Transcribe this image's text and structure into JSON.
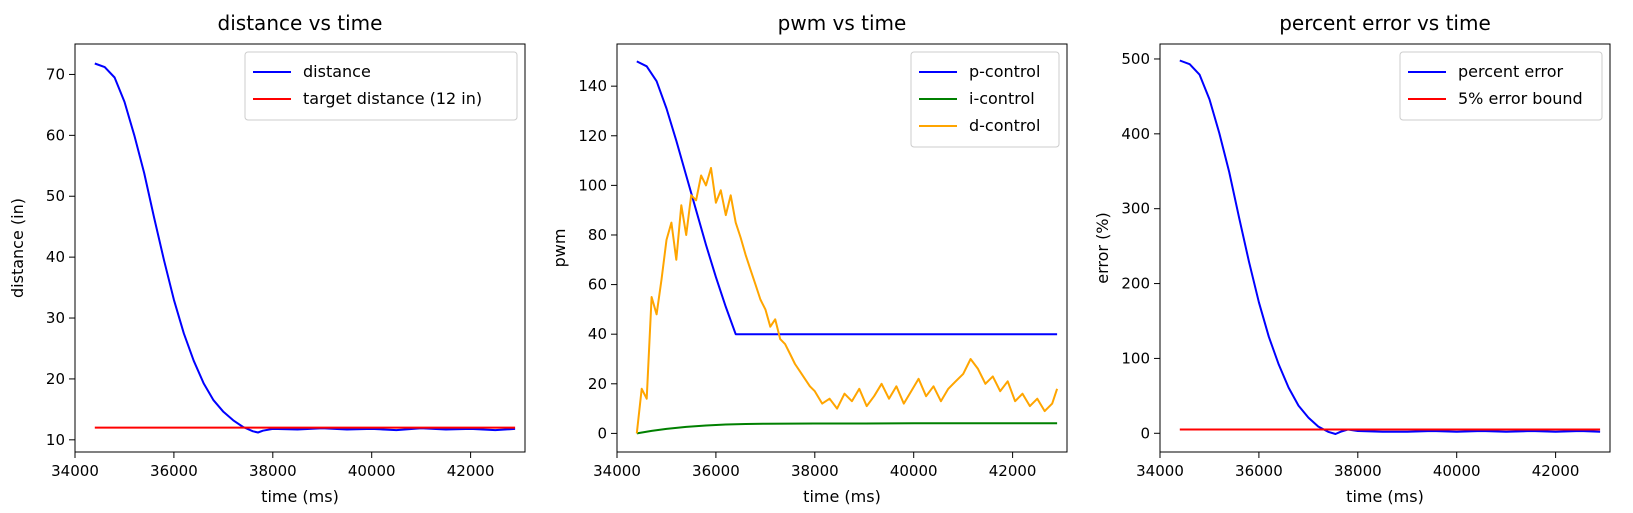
{
  "chart_data": [
    {
      "type": "line",
      "title": "distance vs time",
      "xlabel": "time (ms)",
      "ylabel": "distance (in)",
      "xlim": [
        34000,
        43100
      ],
      "ylim": [
        8,
        75
      ],
      "xticks": [
        34000,
        36000,
        38000,
        40000,
        42000
      ],
      "yticks": [
        10,
        20,
        30,
        40,
        50,
        60,
        70
      ],
      "grid": false,
      "legend_position": "top-right",
      "series": [
        {
          "name": "distance",
          "color": "#0000ff",
          "x": [
            34400,
            34600,
            34800,
            35000,
            35200,
            35400,
            35600,
            35800,
            36000,
            36200,
            36400,
            36600,
            36800,
            37000,
            37200,
            37400,
            37600,
            37700,
            37800,
            38000,
            38500,
            39000,
            39500,
            40000,
            40500,
            41000,
            41500,
            42000,
            42500,
            42900
          ],
          "y": [
            71.8,
            71.2,
            69.5,
            65.5,
            60,
            53.8,
            46.5,
            39.5,
            33,
            27.5,
            23,
            19.3,
            16.5,
            14.6,
            13.2,
            12.1,
            11.4,
            11.2,
            11.5,
            11.8,
            11.7,
            11.9,
            11.7,
            11.8,
            11.6,
            11.9,
            11.7,
            11.8,
            11.6,
            11.8
          ]
        },
        {
          "name": "target distance (12 in)",
          "color": "#ff0000",
          "x": [
            34400,
            42900
          ],
          "y": [
            12,
            12
          ]
        }
      ]
    },
    {
      "type": "line",
      "title": "pwm vs time",
      "xlabel": "time (ms)",
      "ylabel": "pwm",
      "xlim": [
        34000,
        43100
      ],
      "ylim": [
        -7.5,
        157
      ],
      "xticks": [
        34000,
        36000,
        38000,
        40000,
        42000
      ],
      "yticks": [
        0,
        20,
        40,
        60,
        80,
        100,
        120,
        140
      ],
      "grid": false,
      "legend_position": "top-right",
      "series": [
        {
          "name": "p-control",
          "color": "#0000ff",
          "x": [
            34400,
            34600,
            34800,
            35000,
            35200,
            35400,
            35600,
            35800,
            36000,
            36200,
            36400,
            36600,
            38000,
            40000,
            42000,
            42900
          ],
          "y": [
            150,
            148,
            142,
            131,
            118,
            104,
            90,
            76,
            63,
            51,
            40,
            40,
            40,
            40,
            40,
            40
          ]
        },
        {
          "name": "i-control",
          "color": "#008000",
          "x": [
            34400,
            34700,
            35000,
            35400,
            35800,
            36200,
            36600,
            37000,
            38000,
            39000,
            40000,
            41000,
            42000,
            42900
          ],
          "y": [
            0,
            1,
            1.8,
            2.6,
            3.2,
            3.6,
            3.8,
            3.9,
            4,
            4,
            4.1,
            4.1,
            4.1,
            4.1
          ],
          "seed": 0
        },
        {
          "name": "d-control",
          "color": "#ffa500",
          "x": [
            34400,
            34500,
            34600,
            34700,
            34800,
            34900,
            35000,
            35100,
            35200,
            35300,
            35400,
            35500,
            35600,
            35700,
            35800,
            35900,
            36000,
            36100,
            36200,
            36300,
            36400,
            36500,
            36600,
            36700,
            36800,
            36900,
            37000,
            37100,
            37200,
            37300,
            37400,
            37500,
            37600,
            37700,
            37800,
            37900,
            38000,
            38150,
            38300,
            38450,
            38600,
            38750,
            38900,
            39050,
            39200,
            39350,
            39500,
            39650,
            39800,
            39950,
            40100,
            40250,
            40400,
            40550,
            40700,
            40850,
            41000,
            41150,
            41300,
            41450,
            41600,
            41750,
            41900,
            42050,
            42200,
            42350,
            42500,
            42650,
            42800,
            42900
          ],
          "y": [
            0,
            18,
            14,
            55,
            48,
            62,
            78,
            85,
            70,
            92,
            80,
            96,
            94,
            104,
            100,
            107,
            93,
            98,
            88,
            96,
            85,
            79,
            72,
            66,
            60,
            54,
            50,
            43,
            46,
            38,
            36,
            32,
            28,
            25,
            22,
            19,
            17,
            12,
            14,
            10,
            16,
            13,
            18,
            11,
            15,
            20,
            14,
            19,
            12,
            17,
            22,
            15,
            19,
            13,
            18,
            21,
            24,
            30,
            26,
            20,
            23,
            17,
            21,
            13,
            16,
            11,
            14,
            9,
            12,
            18
          ]
        }
      ]
    },
    {
      "type": "line",
      "title": "percent error vs time",
      "xlabel": "time (ms)",
      "ylabel": "error (%)",
      "xlim": [
        34000,
        43100
      ],
      "ylim": [
        -25,
        520
      ],
      "xticks": [
        34000,
        36000,
        38000,
        40000,
        42000
      ],
      "yticks": [
        0,
        100,
        200,
        300,
        400,
        500
      ],
      "grid": false,
      "legend_position": "top-right",
      "series": [
        {
          "name": "percent error",
          "color": "#0000ff",
          "x": [
            34400,
            34600,
            34800,
            35000,
            35200,
            35400,
            35600,
            35800,
            36000,
            36200,
            36400,
            36600,
            36800,
            37000,
            37200,
            37400,
            37550,
            37650,
            37800,
            38000,
            38500,
            39000,
            39500,
            40000,
            40500,
            41000,
            41500,
            42000,
            42500,
            42900
          ],
          "y": [
            498,
            493,
            479,
            446,
            401,
            349,
            288,
            229,
            175,
            129,
            92,
            61,
            37,
            21,
            9,
            2,
            -1,
            2,
            5,
            3,
            2,
            2,
            3,
            2,
            3,
            2,
            3,
            2,
            3,
            2
          ]
        },
        {
          "name": "5% error bound",
          "color": "#ff0000",
          "x": [
            34400,
            42900
          ],
          "y": [
            5,
            5
          ]
        }
      ]
    }
  ]
}
